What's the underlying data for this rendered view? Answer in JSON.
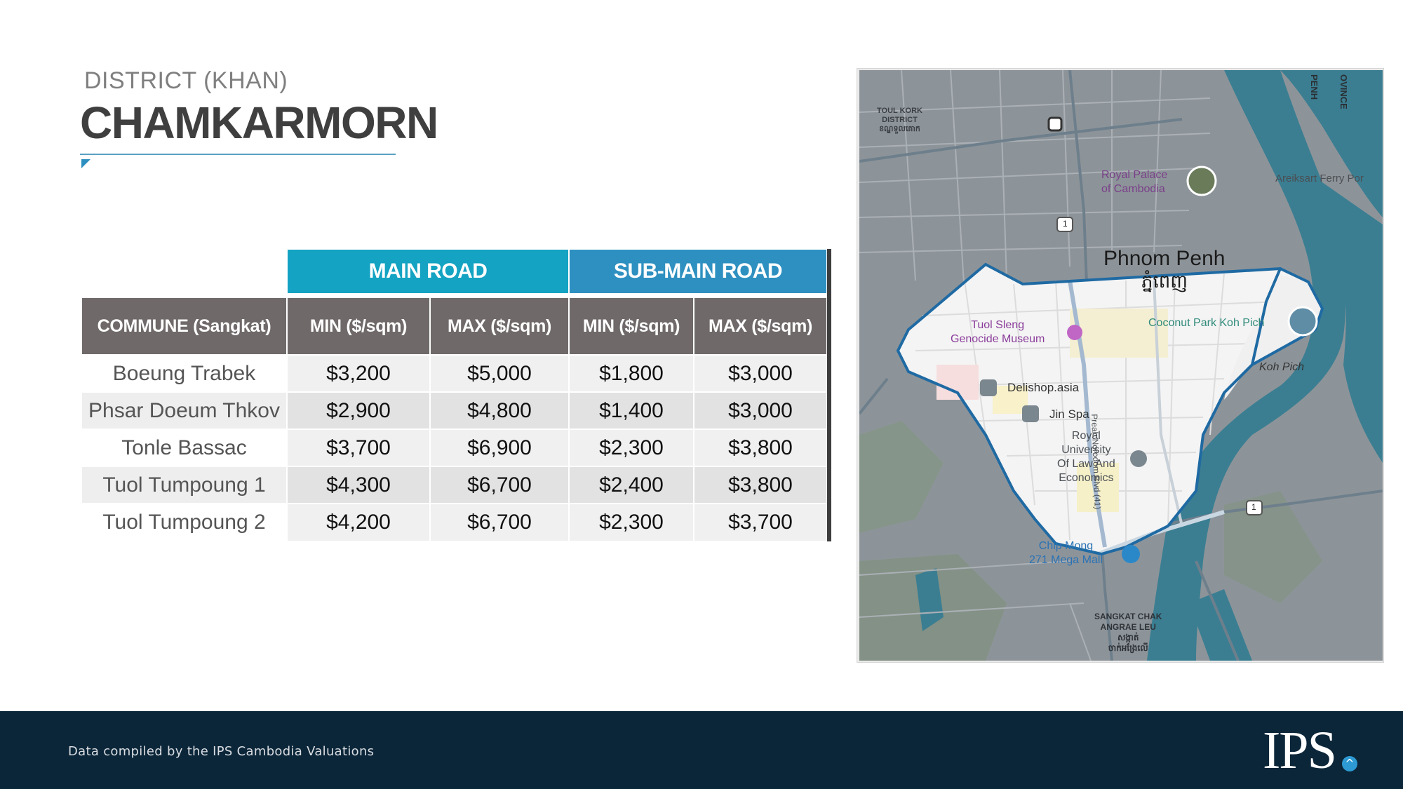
{
  "header": {
    "subtitle": "DISTRICT (KHAN)",
    "title": "CHAMKARMORN"
  },
  "table": {
    "groups": [
      "MAIN ROAD",
      "SUB-MAIN ROAD"
    ],
    "columns": [
      "COMMUNE (Sangkat)",
      "MIN ($/sqm)",
      "MAX ($/sqm)",
      "MIN ($/sqm)",
      "MAX ($/sqm)"
    ],
    "rows": [
      [
        "Boeung Trabek",
        "$3,200",
        "$5,000",
        "$1,800",
        "$3,000"
      ],
      [
        "Phsar Doeum Thkov",
        "$2,900",
        "$4,800",
        "$1,400",
        "$3,000"
      ],
      [
        "Tonle Bassac",
        "$3,700",
        "$6,900",
        "$2,300",
        "$3,800"
      ],
      [
        "Tuol Tumpoung 1",
        "$4,300",
        "$6,700",
        "$2,400",
        "$3,800"
      ],
      [
        "Tuol Tumpoung 2",
        "$4,200",
        "$6,700",
        "$2,300",
        "$3,700"
      ]
    ]
  },
  "map": {
    "labels": {
      "toul_kork": "TOUL KORK\nDISTRICT\nខណ្ឌទួលគោក",
      "royal_palace": "Royal Palace\nof Cambodia",
      "areiksart": "Areiksart Ferry Por",
      "city": "Phnom Penh",
      "city_khmer": "ភ្នំពេញ",
      "tuol_sleng": "Tuol Sleng\nGenocide Museum",
      "coconut_park": "Coconut Park Koh Pich",
      "koh_pich": "Koh Pich",
      "delishop": "Delishop.asia",
      "jin_spa": "Jin Spa",
      "royal_university": "Royal\nUniversity\nOf Law And\nEconomics",
      "norodom": "Preah Norodom Blvd (41)",
      "chip_mong": "Chip Mong\n271 Mega Mall",
      "chak_angrae": "SANGKAT CHAK\nANGRAE LEU\nសង្កាត់\nចាក់អង្រែលើ",
      "road_1": "1",
      "penh": "PENH",
      "province": "OVINCE"
    }
  },
  "footer": {
    "note": "Data compiled by the IPS Cambodia Valuations",
    "logo": "IPS",
    "logo_mark": "^"
  }
}
